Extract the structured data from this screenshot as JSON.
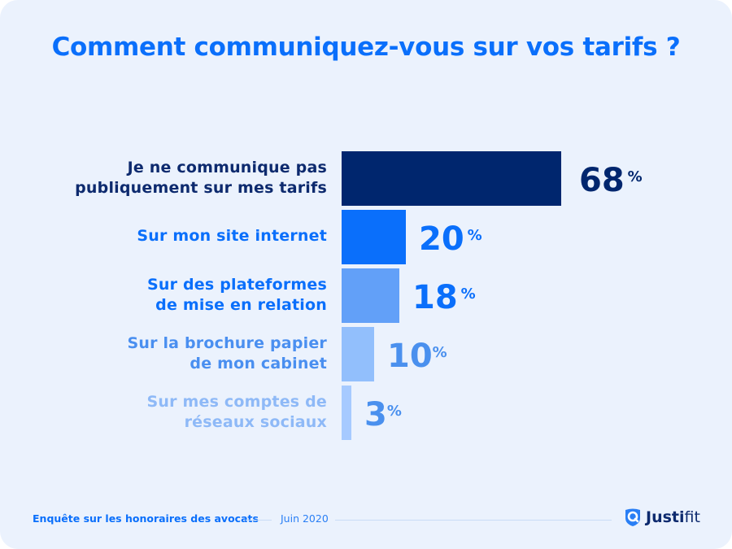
{
  "chart_data": {
    "type": "bar",
    "orientation": "horizontal",
    "title": "Comment communiquez-vous sur vos tarifs ?",
    "categories": [
      "Je ne communique pas publiquement sur mes tarifs",
      "Sur mon site internet",
      "Sur des plateformes de mise en relation",
      "Sur la brochure papier de mon cabinet",
      "Sur mes comptes de réseaux sociaux"
    ],
    "category_lines": [
      [
        "Je ne communique pas",
        "publiquement sur mes tarifs"
      ],
      [
        "Sur mon site internet"
      ],
      [
        "Sur des plateformes",
        "de mise en relation"
      ],
      [
        "Sur la brochure papier",
        "de mon cabinet"
      ],
      [
        "Sur mes comptes de",
        "réseaux sociaux"
      ]
    ],
    "values": [
      68,
      20,
      18,
      10,
      3
    ],
    "value_labels": [
      "68",
      "20",
      "18",
      "10",
      "3"
    ],
    "unit": "%",
    "bar_colors": [
      "#00266e",
      "#0a6ffb",
      "#62a0f8",
      "#92bffc",
      "#a6caff"
    ],
    "label_colors": [
      "#0d2a6e",
      "#0a6ffb",
      "#0a6ffb",
      "#4a8ff0",
      "#8eb9f7"
    ],
    "value_colors": [
      "#00266e",
      "#0a6ffb",
      "#0a6ffb",
      "#4a90ee",
      "#4a90ee"
    ],
    "xlabel": "",
    "ylabel": "",
    "xlim": [
      0,
      100
    ],
    "grid": false,
    "legend": "none"
  },
  "footer": {
    "survey": "Enquête sur les honoraires des avocats",
    "date": "Juin 2020",
    "brand_strong": "Justi",
    "brand_light": "fit"
  },
  "colors": {
    "background": "#ebf2fd",
    "accent": "#0a6ffb",
    "navy": "#00266e"
  }
}
